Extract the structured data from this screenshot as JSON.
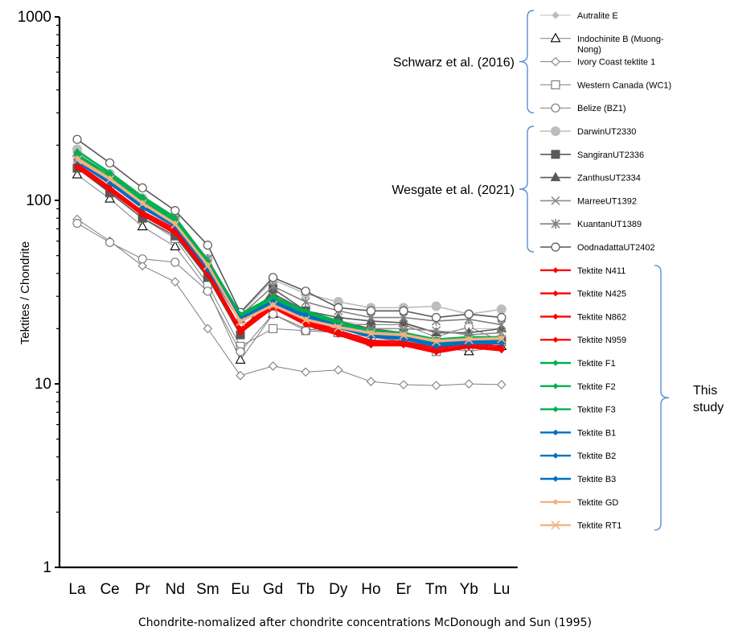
{
  "caption": "Chondrite-nomalized after chondrite concentrations McDonough and Sun (1995)",
  "chart_data": {
    "type": "line",
    "title": "",
    "xlabel": "",
    "ylabel": "Tektites / Chondrite",
    "y_scale": "log",
    "ylim": [
      1,
      1000
    ],
    "y_ticks": [
      "1",
      "10",
      "100",
      "1000"
    ],
    "categories": [
      "La",
      "Ce",
      "Pr",
      "Nd",
      "Sm",
      "Eu",
      "Gd",
      "Tb",
      "Dy",
      "Ho",
      "Er",
      "Tm",
      "Yb",
      "Lu"
    ],
    "grid": false,
    "legend_position": "right",
    "groups": [
      {
        "label": "Schwarz et al. (2016)",
        "series_range": [
          0,
          4
        ]
      },
      {
        "label": "Wesgate et al. (2021)",
        "series_range": [
          5,
          10
        ]
      },
      {
        "label": "This study",
        "series_range": [
          11,
          22
        ],
        "label_lines": [
          "This",
          "study"
        ]
      }
    ],
    "series": [
      {
        "name": "Autralite E",
        "color": "#bdbdbd",
        "marker": "diamond-filled",
        "width": 1,
        "values": [
          160,
          122,
          90,
          72,
          44,
          22,
          31,
          23,
          22,
          21,
          21,
          19,
          20,
          20
        ]
      },
      {
        "name": "Indochinite B (Muong-Nong)",
        "color": "#7f7f7f",
        "marker": "triangle-open",
        "width": 1,
        "values": [
          138,
          102,
          72,
          56,
          33,
          13.5,
          24,
          20,
          19,
          18,
          17,
          16,
          15,
          16
        ]
      },
      {
        "name": "Ivory Coast tektite 1",
        "color": "#7f7f7f",
        "marker": "diamond-open",
        "width": 1,
        "values": [
          79,
          60,
          44,
          36,
          20,
          11.1,
          12.5,
          11.6,
          11.9,
          10.3,
          9.9,
          9.8,
          10.0,
          9.9
        ]
      },
      {
        "name": "Western Canada (WC1)",
        "color": "#7f7f7f",
        "marker": "square-open",
        "width": 1,
        "values": [
          150,
          110,
          80,
          62,
          35,
          16,
          20,
          19.5,
          19,
          17,
          17,
          15,
          16,
          17
        ]
      },
      {
        "name": "Belize (BZ1)",
        "color": "#7f7f7f",
        "marker": "circle-open",
        "width": 1,
        "values": [
          75,
          59,
          48,
          46,
          32,
          15,
          24,
          19.5,
          21,
          21,
          21,
          18,
          20.5,
          17
        ]
      },
      {
        "name": "DarwinUT2330",
        "color": "#bdbdbd",
        "marker": "circle-filled",
        "width": 1.6,
        "values": [
          190,
          140,
          103,
          80,
          48,
          24,
          37,
          31,
          28,
          26,
          26,
          26.5,
          24,
          25.5
        ]
      },
      {
        "name": "SangiranUT2336",
        "color": "#595959",
        "marker": "square-filled",
        "width": 1.6,
        "values": [
          150,
          110,
          80,
          64,
          38,
          18.5,
          33,
          25,
          22,
          20,
          19,
          17,
          17,
          17.5
        ]
      },
      {
        "name": "ZanthusUT2334",
        "color": "#595959",
        "marker": "triangle-filled",
        "width": 1.6,
        "values": [
          180,
          132,
          98,
          78,
          46,
          22.5,
          31,
          25,
          23,
          22,
          21.5,
          19,
          19,
          20
        ]
      },
      {
        "name": "MarreeUT1392",
        "color": "#8c8c8c",
        "marker": "x",
        "width": 1.6,
        "values": [
          170,
          128,
          95,
          75,
          45,
          23,
          30,
          24,
          21,
          20,
          20,
          19.5,
          18.5,
          19
        ]
      },
      {
        "name": "KuantanUT1389",
        "color": "#808080",
        "marker": "asterisk",
        "width": 1.6,
        "values": [
          175,
          133,
          99,
          78,
          48,
          23.5,
          34,
          28,
          25,
          23,
          23,
          22,
          22.5,
          21
        ]
      },
      {
        "name": "OodnadattaUT2402",
        "color": "#595959",
        "marker": "circle-open",
        "width": 1.6,
        "values": [
          215,
          160,
          117,
          88,
          57,
          24.5,
          38,
          32,
          26,
          25,
          25,
          23,
          24,
          23
        ]
      },
      {
        "name": "Tektite N411",
        "color": "#ff0000",
        "marker": "diamond-small",
        "width": 2.4,
        "values": [
          150,
          113,
          83,
          66,
          39,
          19,
          26,
          21,
          18.5,
          16.2,
          16.2,
          14.8,
          15.8,
          15.2
        ]
      },
      {
        "name": "Tektite N425",
        "color": "#ff0000",
        "marker": "diamond-small",
        "width": 2.4,
        "values": [
          155,
          116,
          85,
          68,
          40,
          19.5,
          27,
          22,
          19,
          16.8,
          16.6,
          15.2,
          16.2,
          15.6
        ]
      },
      {
        "name": "Tektite N862",
        "color": "#ff0000",
        "marker": "diamond-small",
        "width": 2.4,
        "values": [
          158,
          118,
          87,
          70,
          41,
          20,
          27.5,
          22.5,
          19.5,
          17.2,
          17,
          15.6,
          16.6,
          16
        ]
      },
      {
        "name": "Tektite N959",
        "color": "#ff0000",
        "marker": "diamond-small",
        "width": 2.4,
        "values": [
          153,
          114,
          84,
          67,
          40,
          19,
          26.5,
          21.5,
          19,
          16.5,
          16.4,
          15,
          16,
          15.4
        ]
      },
      {
        "name": "Tektite F1",
        "color": "#00b050",
        "marker": "diamond-small",
        "width": 2.4,
        "values": [
          185,
          142,
          105,
          81,
          47,
          24,
          30,
          25,
          22,
          19.5,
          19,
          17.5,
          18,
          18
        ]
      },
      {
        "name": "Tektite F2",
        "color": "#00b050",
        "marker": "diamond-small",
        "width": 2.4,
        "values": [
          178,
          138,
          102,
          79,
          46,
          23.5,
          29.5,
          24.5,
          21.5,
          19,
          18.6,
          17,
          17.6,
          17.6
        ]
      },
      {
        "name": "Tektite F3",
        "color": "#00b050",
        "marker": "diamond-small",
        "width": 2.4,
        "values": [
          172,
          134,
          99,
          77,
          45,
          23,
          29,
          24,
          21,
          18.6,
          18.2,
          16.7,
          17.3,
          17.2
        ]
      },
      {
        "name": "Tektite B1",
        "color": "#0070c0",
        "marker": "diamond-small",
        "width": 2.4,
        "values": [
          165,
          127,
          93,
          73,
          43,
          22.5,
          28,
          23.5,
          20.5,
          18.2,
          17.8,
          16.3,
          16.9,
          16.9
        ]
      },
      {
        "name": "Tektite B2",
        "color": "#0070c0",
        "marker": "diamond-small",
        "width": 2.4,
        "values": [
          162,
          124,
          91,
          72,
          42,
          22,
          27.5,
          23,
          20.2,
          18,
          17.5,
          16,
          16.6,
          16.6
        ]
      },
      {
        "name": "Tektite B3",
        "color": "#0070c0",
        "marker": "diamond-small",
        "width": 2.4,
        "values": [
          168,
          129,
          95,
          74,
          44,
          22.8,
          28.3,
          23.8,
          20.8,
          18.4,
          18,
          16.5,
          17.1,
          17.1
        ]
      },
      {
        "name": "Tektite GD",
        "color": "#f4b183",
        "marker": "diamond-small",
        "width": 2.4,
        "values": [
          170,
          132,
          97,
          75,
          44.5,
          22,
          27,
          22.5,
          20.5,
          19,
          18.6,
          17.2,
          17.6,
          17.8
        ]
      },
      {
        "name": "Tektite RT1",
        "color": "#f4b183",
        "marker": "x",
        "width": 2.4,
        "values": [
          166,
          130,
          96,
          74,
          44,
          21.8,
          26.8,
          22.3,
          20.3,
          18.8,
          18.4,
          17,
          17.4,
          17.6
        ]
      }
    ]
  }
}
